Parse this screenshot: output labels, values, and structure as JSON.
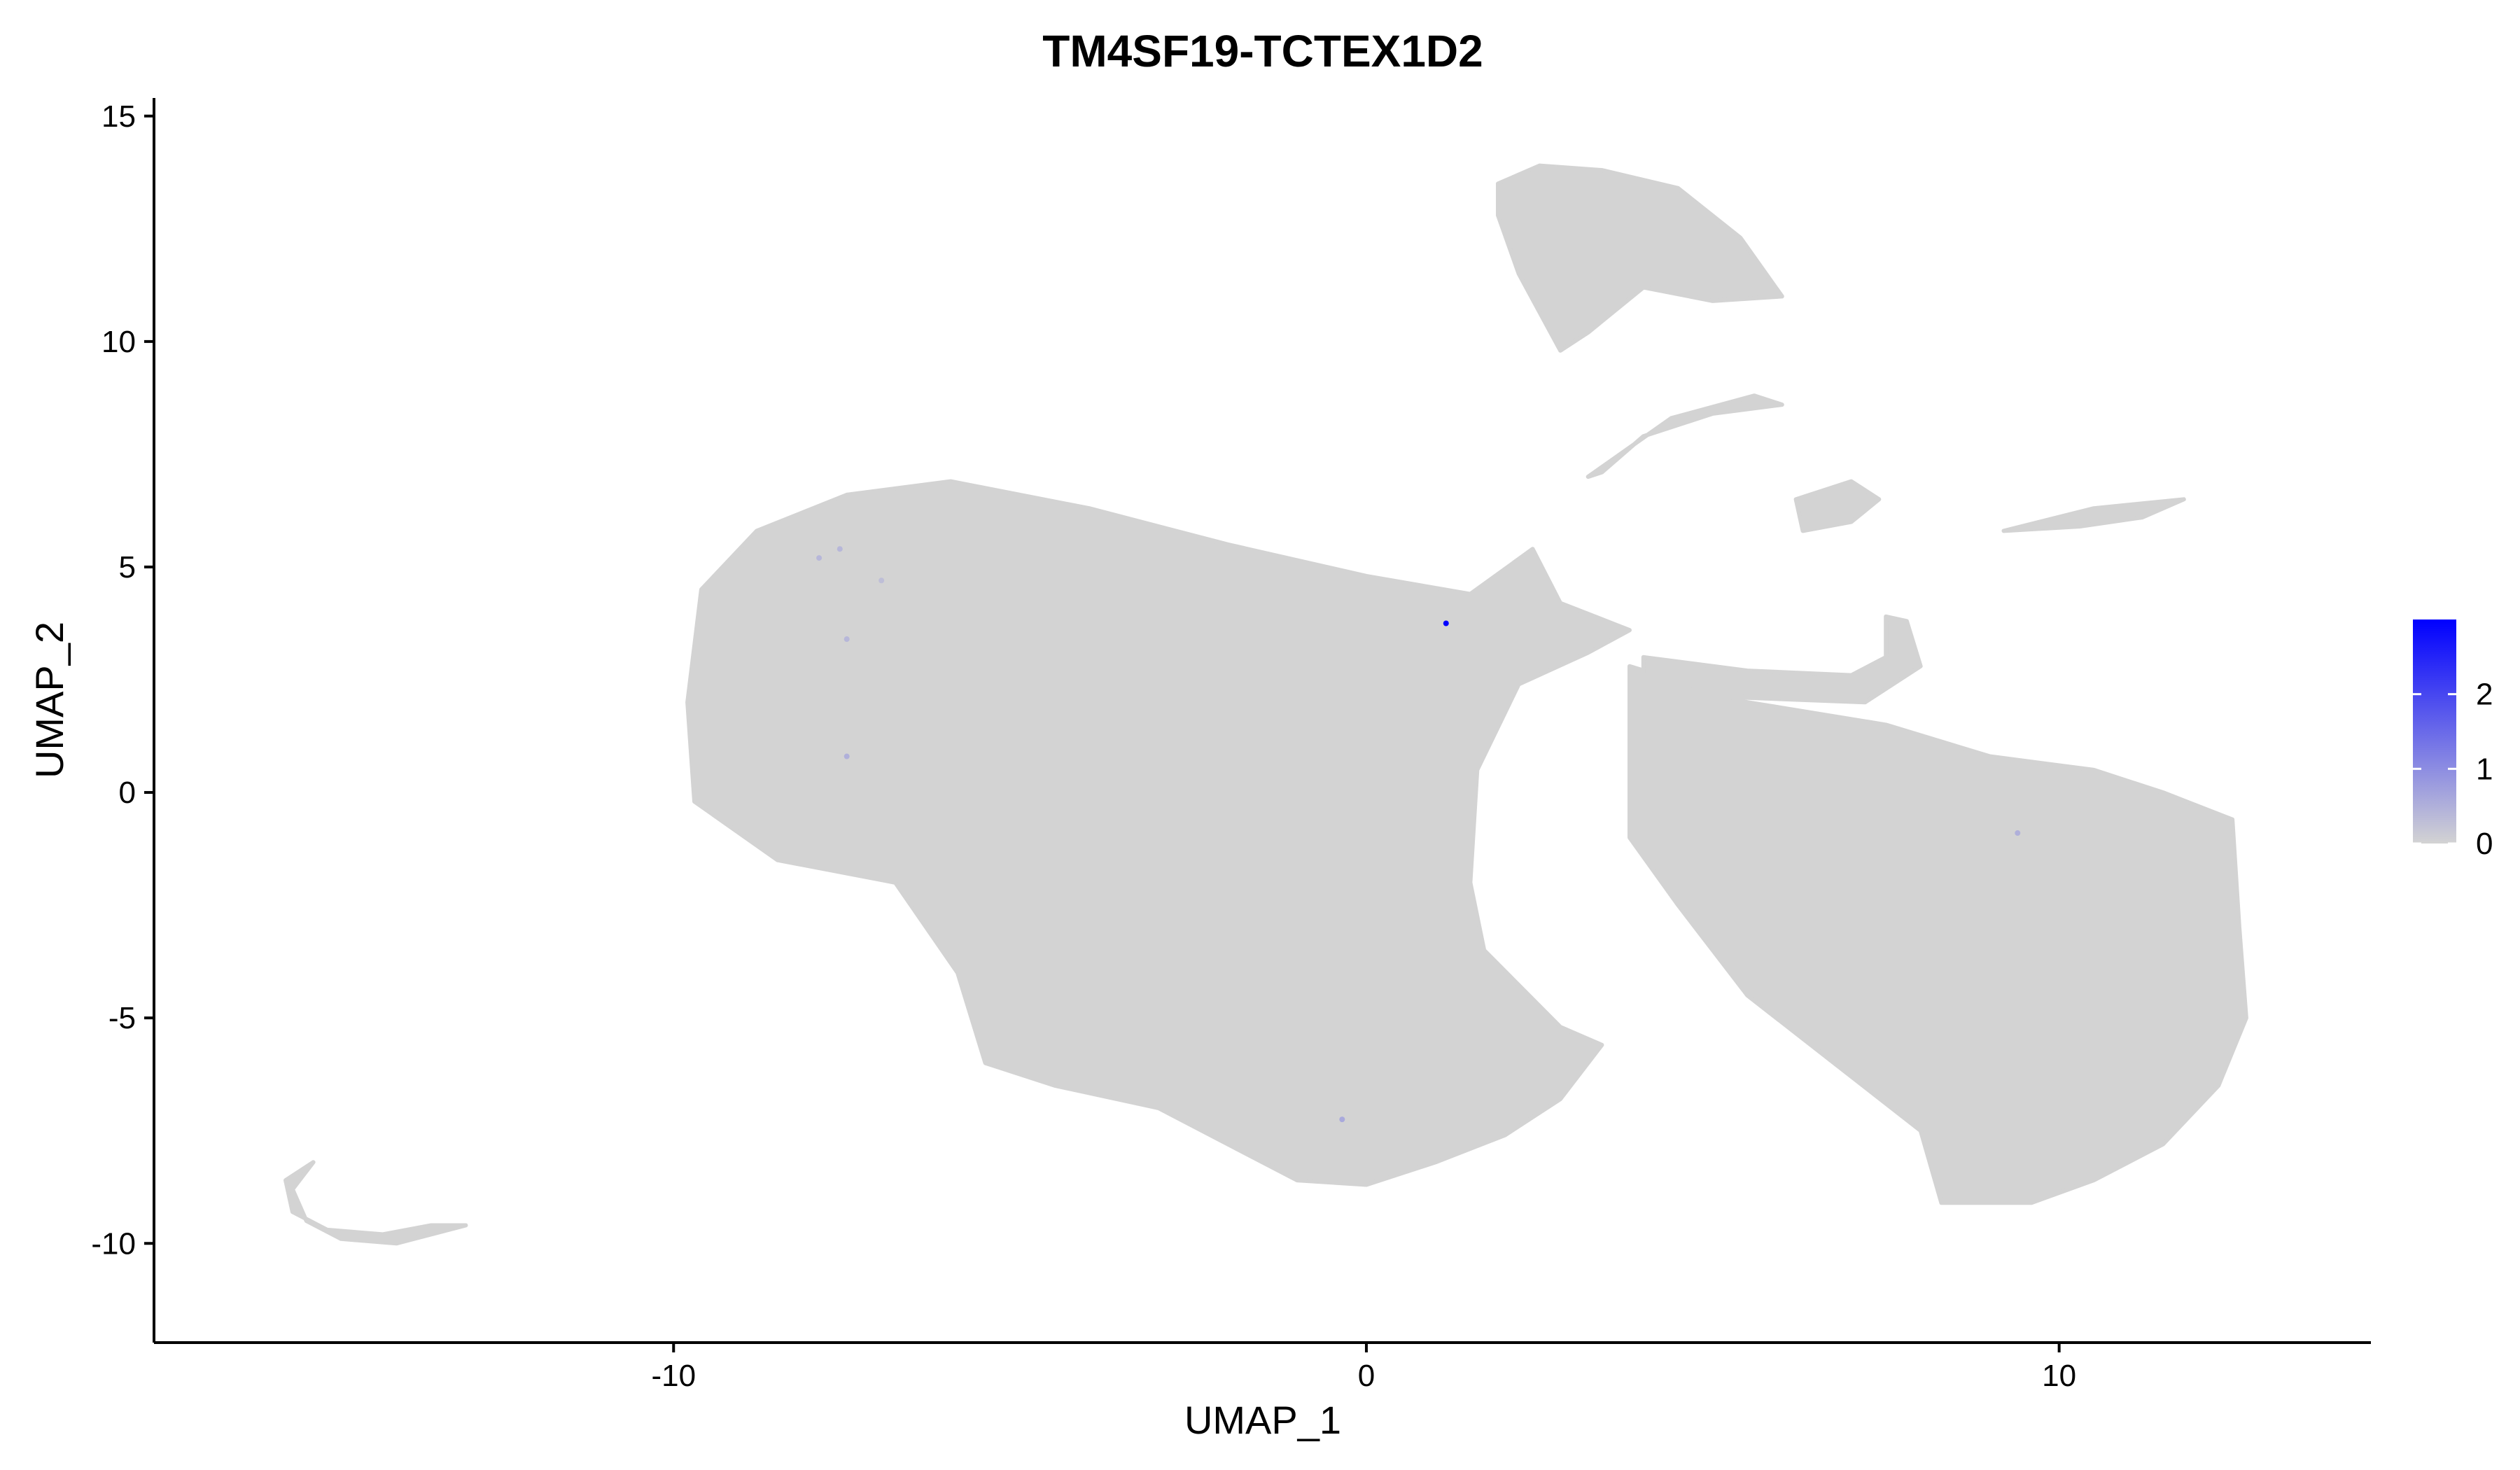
{
  "chart_data": {
    "type": "scatter",
    "title": "TM4SF19-TCTEX1D2",
    "xlabel": "UMAP_1",
    "ylabel": "UMAP_2",
    "xlim": [
      -17.5,
      14.5
    ],
    "ylim": [
      -12.2,
      15.4
    ],
    "x_ticks": [
      -10,
      0,
      10
    ],
    "x_tick_labels": [
      "-10",
      "0",
      "10"
    ],
    "y_ticks": [
      -10,
      -5,
      0,
      5,
      10,
      15
    ],
    "y_tick_labels": [
      "-10",
      "-5",
      "0",
      "5",
      "10",
      "15"
    ],
    "grid": false,
    "legend": {
      "placement": "right",
      "type": "colorbar",
      "min": 0,
      "max": 3,
      "ticks": [
        0,
        1,
        2
      ],
      "tick_labels": [
        "0",
        "1",
        "2"
      ],
      "low_color": "#d3d3d3",
      "high_color": "#0000ff"
    },
    "series": [
      {
        "name": "expression = 0 (bulk of cells)",
        "color": "#d3d3d3",
        "regions": [
          {
            "name": "left lobe",
            "polygon": [
              [
                -9.6,
                4.5
              ],
              [
                -8.8,
                5.8
              ],
              [
                -7.5,
                6.6
              ],
              [
                -6.0,
                6.9
              ],
              [
                -4.0,
                6.3
              ],
              [
                -2.0,
                5.5
              ],
              [
                0.0,
                4.8
              ],
              [
                1.5,
                4.4
              ],
              [
                2.4,
                5.4
              ],
              [
                2.8,
                4.2
              ],
              [
                3.8,
                3.6
              ],
              [
                3.2,
                3.1
              ],
              [
                2.2,
                2.4
              ],
              [
                1.6,
                0.5
              ],
              [
                1.5,
                -2.0
              ],
              [
                1.7,
                -3.5
              ],
              [
                2.8,
                -5.2
              ],
              [
                3.4,
                -5.6
              ],
              [
                2.8,
                -6.8
              ],
              [
                2.0,
                -7.6
              ],
              [
                1.0,
                -8.2
              ],
              [
                0.0,
                -8.7
              ],
              [
                -1.0,
                -8.6
              ],
              [
                -2.0,
                -7.8
              ],
              [
                -3.0,
                -7.0
              ],
              [
                -4.5,
                -6.5
              ],
              [
                -5.5,
                -6.0
              ],
              [
                -5.9,
                -4.0
              ],
              [
                -6.8,
                -2.0
              ],
              [
                -8.5,
                -1.5
              ],
              [
                -9.7,
                -0.2
              ],
              [
                -9.8,
                2.0
              ]
            ]
          },
          {
            "name": "right lobe",
            "polygon": [
              [
                3.8,
                2.8
              ],
              [
                5.5,
                2.0
              ],
              [
                7.5,
                1.5
              ],
              [
                9.0,
                0.8
              ],
              [
                10.5,
                0.5
              ],
              [
                11.5,
                0.0
              ],
              [
                12.5,
                -0.6
              ],
              [
                12.6,
                -3.0
              ],
              [
                12.7,
                -5.0
              ],
              [
                12.3,
                -6.5
              ],
              [
                11.5,
                -7.8
              ],
              [
                10.5,
                -8.6
              ],
              [
                9.6,
                -9.1
              ],
              [
                8.3,
                -9.1
              ],
              [
                8.0,
                -7.5
              ],
              [
                7.0,
                -6.3
              ],
              [
                5.5,
                -4.5
              ],
              [
                4.5,
                -2.5
              ],
              [
                3.8,
                -1.0
              ],
              [
                3.8,
                1.0
              ]
            ]
          },
          {
            "name": "top arm",
            "polygon": [
              [
                1.9,
                13.5
              ],
              [
                2.5,
                13.9
              ],
              [
                3.4,
                13.8
              ],
              [
                4.5,
                13.4
              ],
              [
                5.4,
                12.3
              ],
              [
                6.0,
                11.0
              ],
              [
                5.0,
                10.9
              ],
              [
                4.0,
                11.2
              ],
              [
                3.2,
                10.2
              ],
              [
                2.8,
                9.8
              ],
              [
                2.2,
                11.5
              ],
              [
                1.9,
                12.8
              ]
            ]
          },
          {
            "name": "left curved strand",
            "polygon": [
              [
                -15.6,
                -8.6
              ],
              [
                -15.2,
                -8.2
              ],
              [
                -15.5,
                -8.8
              ],
              [
                -15.3,
                -9.5
              ],
              [
                -14.8,
                -9.9
              ],
              [
                -14.0,
                -10.0
              ],
              [
                -13.0,
                -9.6
              ],
              [
                -13.5,
                -9.6
              ],
              [
                -14.2,
                -9.8
              ],
              [
                -15.0,
                -9.7
              ],
              [
                -15.5,
                -9.3
              ]
            ]
          },
          {
            "name": "upper strand",
            "polygon": [
              [
                3.2,
                7.0
              ],
              [
                4.4,
                8.3
              ],
              [
                5.6,
                8.8
              ],
              [
                6.0,
                8.6
              ],
              [
                5.0,
                8.4
              ],
              [
                4.0,
                7.9
              ],
              [
                3.4,
                7.1
              ]
            ]
          },
          {
            "name": "middle blob",
            "polygon": [
              [
                6.2,
                6.5
              ],
              [
                7.0,
                6.9
              ],
              [
                7.4,
                6.5
              ],
              [
                7.0,
                6.0
              ],
              [
                6.3,
                5.8
              ]
            ]
          },
          {
            "name": "right thin strand",
            "polygon": [
              [
                9.2,
                5.8
              ],
              [
                10.5,
                6.3
              ],
              [
                11.8,
                6.5
              ],
              [
                11.2,
                6.1
              ],
              [
                10.3,
                5.9
              ]
            ]
          },
          {
            "name": "curved arm",
            "polygon": [
              [
                4.0,
                3.0
              ],
              [
                5.5,
                2.7
              ],
              [
                7.0,
                2.6
              ],
              [
                7.5,
                3.0
              ],
              [
                7.5,
                3.9
              ],
              [
                7.8,
                3.8
              ],
              [
                8.0,
                2.8
              ],
              [
                7.2,
                2.0
              ],
              [
                5.5,
                2.1
              ],
              [
                4.0,
                2.6
              ]
            ]
          }
        ]
      },
      {
        "name": "expression > 0",
        "color": "#0000ff",
        "points": [
          {
            "x": 1.15,
            "y": 3.75,
            "value": 3.0
          },
          {
            "x": -7.9,
            "y": 5.2,
            "value": 0.4
          },
          {
            "x": -7.6,
            "y": 5.4,
            "value": 0.4
          },
          {
            "x": -7.0,
            "y": 4.7,
            "value": 0.3
          },
          {
            "x": -7.5,
            "y": 3.4,
            "value": 0.4
          },
          {
            "x": -7.5,
            "y": 0.8,
            "value": 0.5
          },
          {
            "x": -0.35,
            "y": -7.25,
            "value": 0.6
          },
          {
            "x": 9.4,
            "y": -0.9,
            "value": 0.5
          }
        ]
      }
    ]
  }
}
